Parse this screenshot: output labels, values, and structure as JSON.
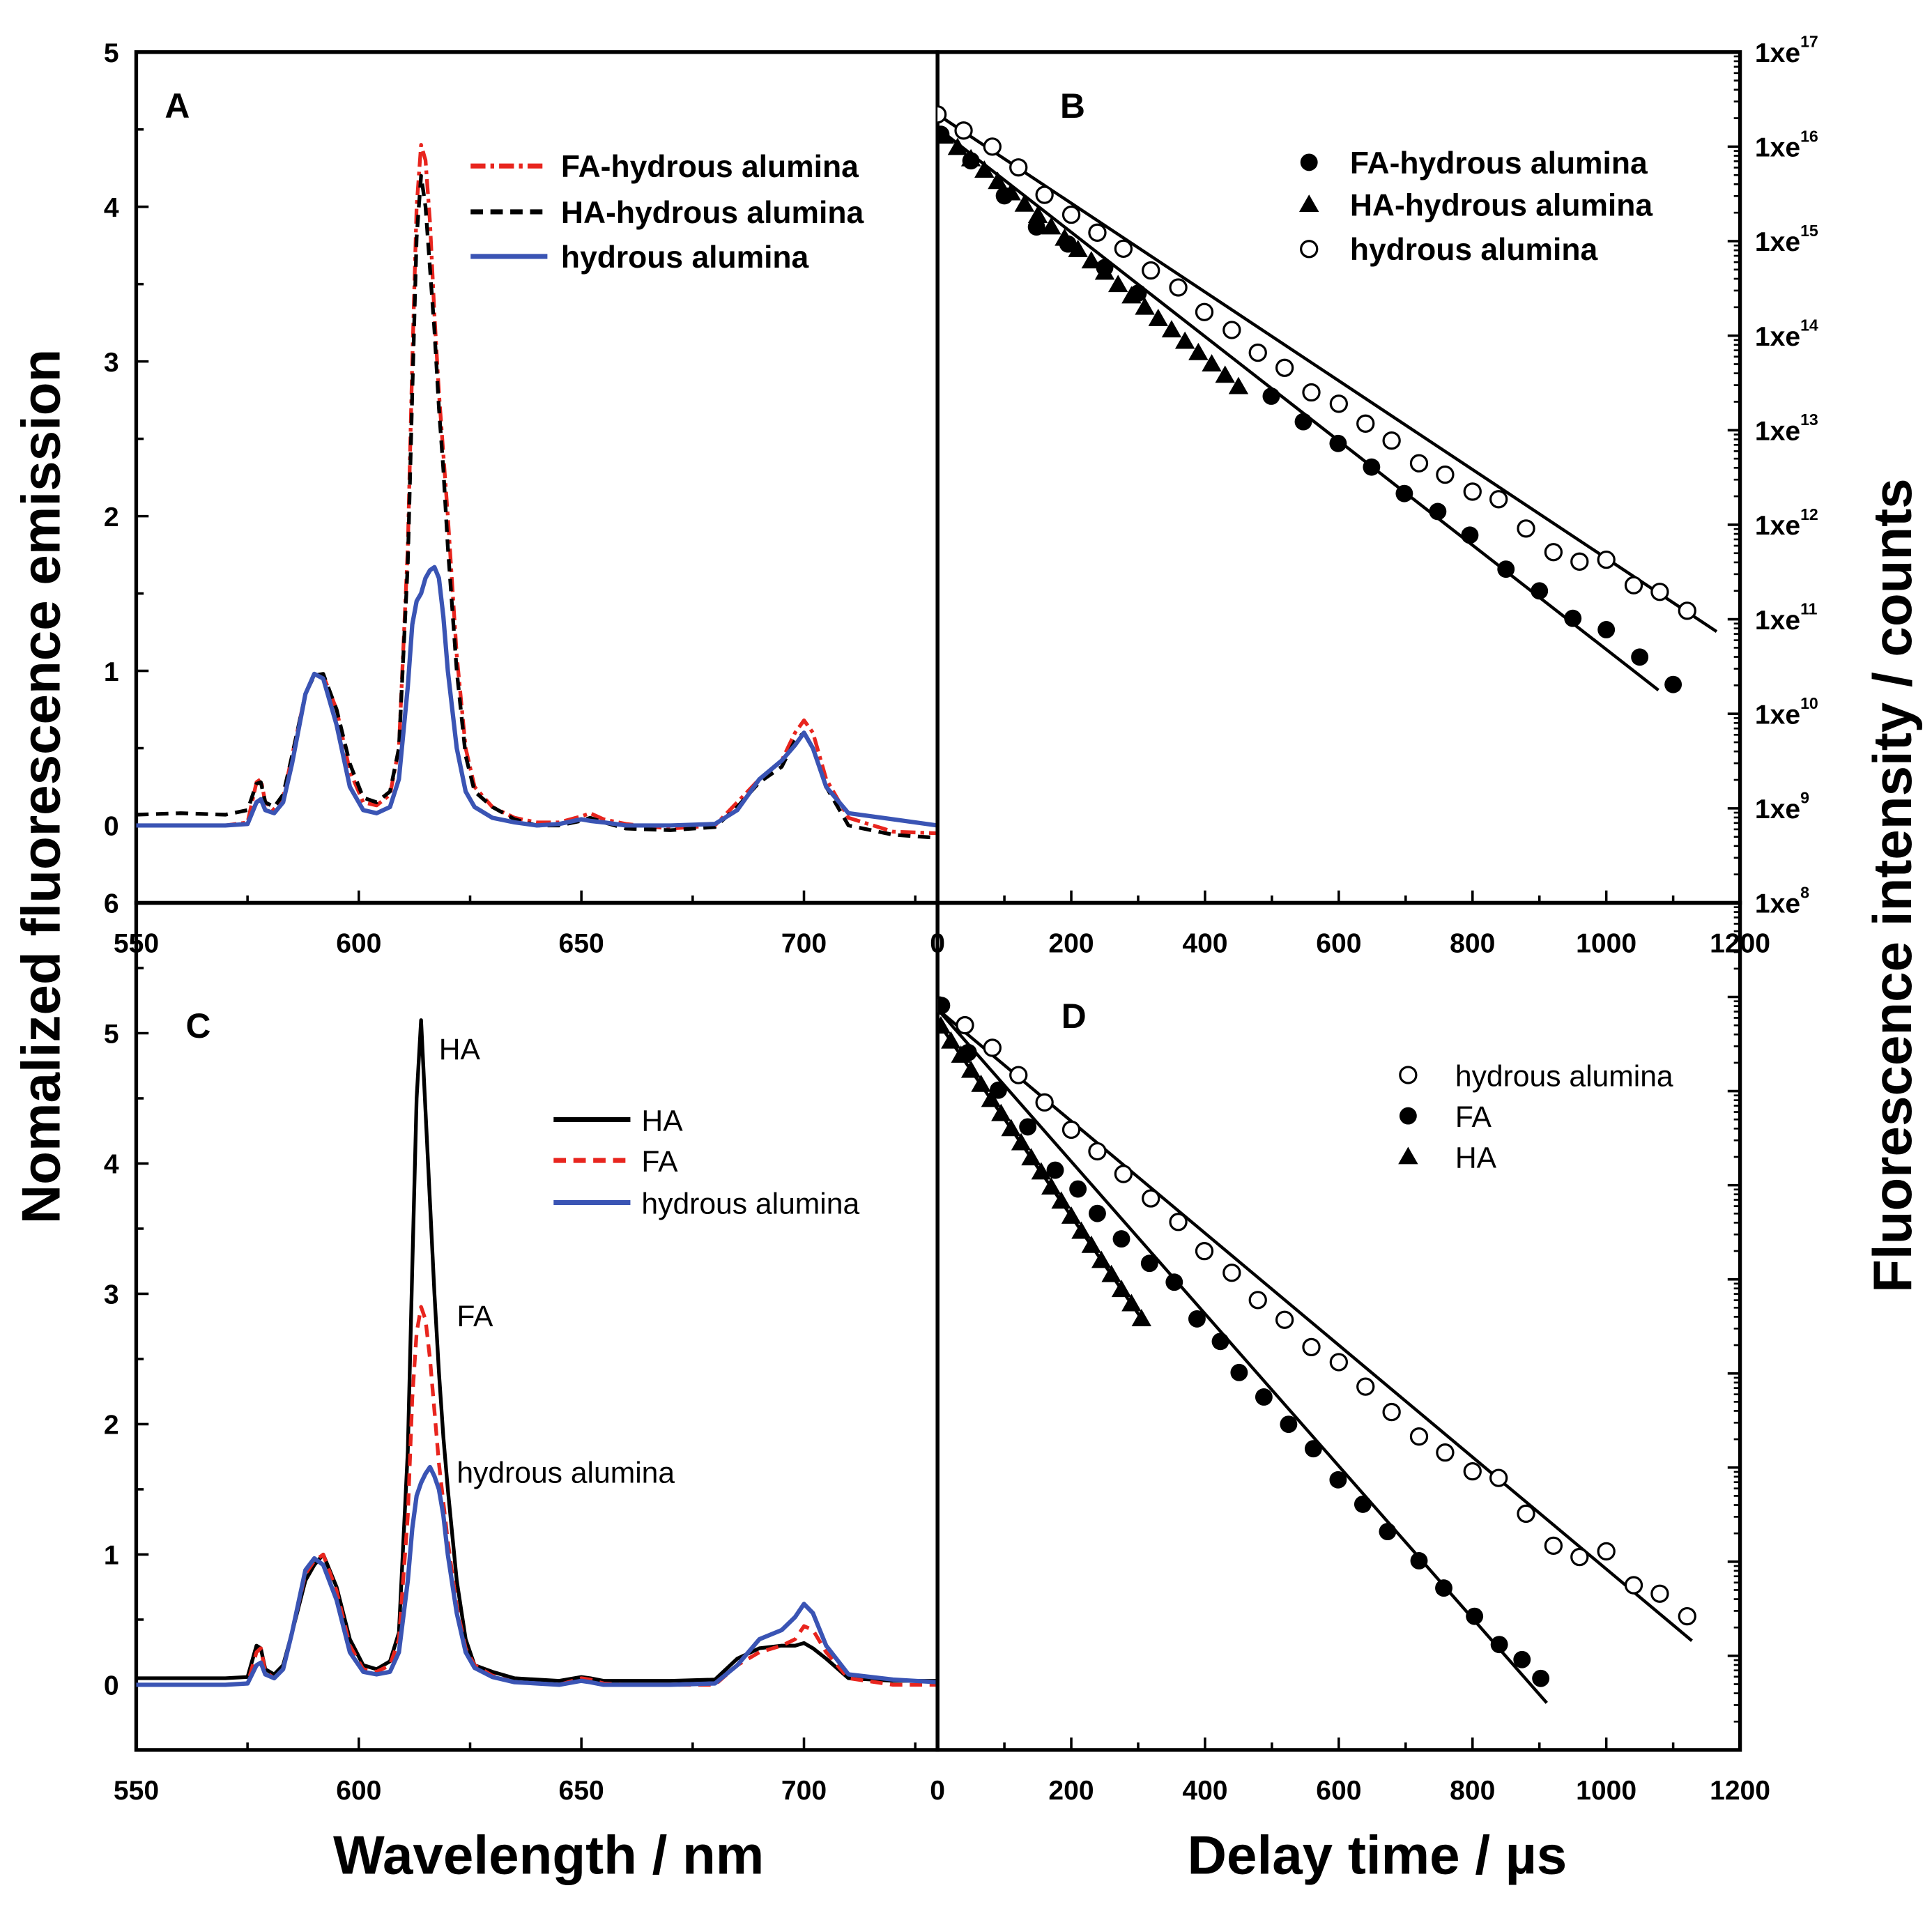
{
  "chart_data": [
    {
      "panel": "A",
      "type": "line",
      "panel_label": "A",
      "xlim": [
        550,
        730
      ],
      "ylim": [
        -0.5,
        5
      ],
      "xticks": [
        550,
        600,
        650,
        700
      ],
      "yticks": [
        0,
        1,
        2,
        3,
        4,
        5
      ],
      "ytick_bottom_label": "6",
      "x": [
        550,
        560,
        570,
        575,
        577,
        578,
        579,
        581,
        583,
        585,
        588,
        590,
        592,
        595,
        598,
        601,
        604,
        607,
        609,
        611,
        612,
        613,
        614,
        615,
        616,
        617,
        618,
        619,
        620,
        622,
        624,
        626,
        630,
        635,
        640,
        645,
        650,
        652,
        655,
        660,
        670,
        680,
        685,
        690,
        695,
        698,
        700,
        702,
        705,
        710,
        720,
        730
      ],
      "series": [
        {
          "name": "FA-hydrous alumina",
          "color": "#e8251e",
          "style": "dashdot",
          "values": [
            0,
            0,
            0,
            0.02,
            0.28,
            0.3,
            0.15,
            0.1,
            0.18,
            0.45,
            0.85,
            0.98,
            0.97,
            0.75,
            0.35,
            0.15,
            0.13,
            0.2,
            0.5,
            1.8,
            3.0,
            4.0,
            4.4,
            4.3,
            3.9,
            3.3,
            2.8,
            2.4,
            2.0,
            1.1,
            0.5,
            0.25,
            0.12,
            0.05,
            0.02,
            0.02,
            0.06,
            0.08,
            0.04,
            0.01,
            -0.02,
            0,
            0.15,
            0.3,
            0.42,
            0.6,
            0.68,
            0.6,
            0.3,
            0.05,
            -0.04,
            -0.05
          ]
        },
        {
          "name": "HA-hydrous alumina",
          "color": "#000000",
          "style": "dashed",
          "values": [
            0.07,
            0.08,
            0.07,
            0.1,
            0.27,
            0.28,
            0.15,
            0.12,
            0.2,
            0.45,
            0.85,
            0.97,
            0.98,
            0.75,
            0.4,
            0.18,
            0.15,
            0.22,
            0.5,
            1.7,
            2.8,
            3.8,
            4.2,
            4.0,
            3.6,
            3.2,
            2.7,
            2.3,
            1.8,
            1.0,
            0.45,
            0.22,
            0.12,
            0.04,
            0,
            0,
            0.03,
            0.05,
            0.02,
            -0.02,
            -0.03,
            -0.01,
            0.12,
            0.28,
            0.38,
            0.55,
            0.6,
            0.5,
            0.25,
            0,
            -0.06,
            -0.08
          ]
        },
        {
          "name": "hydrous alumina",
          "color": "#3a54b4",
          "style": "solid",
          "values": [
            0,
            0,
            0,
            0.01,
            0.15,
            0.17,
            0.1,
            0.08,
            0.15,
            0.4,
            0.85,
            0.98,
            0.95,
            0.65,
            0.25,
            0.1,
            0.08,
            0.12,
            0.3,
            0.9,
            1.3,
            1.45,
            1.5,
            1.6,
            1.65,
            1.67,
            1.6,
            1.35,
            1.0,
            0.5,
            0.22,
            0.12,
            0.05,
            0.02,
            0,
            0.01,
            0.04,
            0.03,
            0.02,
            0,
            0,
            0.01,
            0.1,
            0.3,
            0.42,
            0.52,
            0.6,
            0.5,
            0.25,
            0.08,
            0.04,
            0
          ]
        }
      ],
      "legend": {
        "placement": "top-right",
        "entries": [
          "FA-hydrous alumina",
          "HA-hydrous alumina",
          "hydrous alumina"
        ]
      }
    },
    {
      "panel": "B",
      "type": "scatter",
      "panel_label": "B",
      "xlim": [
        0,
        1200
      ],
      "ylim_log10": [
        8,
        17
      ],
      "xticks": [
        0,
        200,
        400,
        600,
        800,
        1000,
        1200
      ],
      "ytick_labels": [
        {
          "exp": 8,
          "base": "1xe",
          "sup": "8"
        },
        {
          "exp": 9,
          "base": "1xe",
          "sup": "9"
        },
        {
          "exp": 10,
          "base": "1xe",
          "sup": "10"
        },
        {
          "exp": 11,
          "base": "1xe",
          "sup": "11"
        },
        {
          "exp": 12,
          "base": "1xe",
          "sup": "12"
        },
        {
          "exp": 13,
          "base": "1xe",
          "sup": "13"
        },
        {
          "exp": 14,
          "base": "1xe",
          "sup": "14"
        },
        {
          "exp": 15,
          "base": "1xe",
          "sup": "15"
        },
        {
          "exp": 16,
          "base": "1xe",
          "sup": "16"
        },
        {
          "exp": 17,
          "base": "1xe",
          "sup": "17"
        }
      ],
      "series": [
        {
          "name": "FA-hydrous alumina",
          "marker": "filled-circle",
          "x": [
            5,
            50,
            100,
            148,
            195,
            250,
            300,
            499,
            547,
            599,
            649,
            698,
            748,
            796,
            850,
            900,
            950,
            1000,
            1050,
            1100
          ],
          "log10_y": [
            16.13,
            15.85,
            15.48,
            15.15,
            14.97,
            14.72,
            14.45,
            13.36,
            13.09,
            12.86,
            12.61,
            12.33,
            12.14,
            11.89,
            11.53,
            11.3,
            11.01,
            10.89,
            10.6,
            10.31
          ]
        },
        {
          "name": "HA-hydrous alumina",
          "marker": "filled-triangle",
          "x": [
            10,
            30,
            50,
            70,
            90,
            110,
            130,
            150,
            170,
            190,
            210,
            230,
            250,
            270,
            290,
            310,
            330,
            350,
            370,
            390,
            410,
            430,
            450
          ],
          "log10_y": [
            16.11,
            15.99,
            15.87,
            15.75,
            15.63,
            15.51,
            15.39,
            15.27,
            15.15,
            15.03,
            14.91,
            14.79,
            14.67,
            14.54,
            14.42,
            14.3,
            14.18,
            14.06,
            13.94,
            13.82,
            13.7,
            13.58,
            13.46
          ]
        },
        {
          "name": "hydrous alumina",
          "marker": "open-circle",
          "x": [
            0,
            39,
            82,
            121,
            160,
            200,
            239,
            278,
            319,
            360,
            399,
            440,
            479,
            519,
            559,
            600,
            640,
            679,
            720,
            759,
            800,
            839,
            880,
            921,
            960,
            1000,
            1041,
            1080,
            1121
          ],
          "log10_y": [
            16.34,
            16.17,
            16.0,
            15.78,
            15.49,
            15.28,
            15.09,
            14.92,
            14.69,
            14.51,
            14.25,
            14.06,
            13.82,
            13.66,
            13.4,
            13.28,
            13.07,
            12.89,
            12.65,
            12.53,
            12.35,
            12.27,
            11.96,
            11.71,
            11.61,
            11.63,
            11.36,
            11.29,
            11.09
          ]
        }
      ],
      "fits": [
        {
          "name": "hydrous alumina fit",
          "points": [
            [
              0,
              16.34
            ],
            [
              1165,
              10.87
            ]
          ]
        },
        {
          "name": "FA-hydrous alumina fit",
          "points": [
            [
              5,
              16.17
            ],
            [
              1078,
              10.25
            ]
          ]
        }
      ],
      "legend": {
        "placement": "top-right",
        "entries": [
          "FA-hydrous alumina",
          "HA-hydrous alumina",
          "hydrous alumina"
        ]
      }
    },
    {
      "panel": "C",
      "type": "line",
      "panel_label": "C",
      "xlim": [
        550,
        730
      ],
      "ylim": [
        -0.5,
        6
      ],
      "xticks": [
        550,
        600,
        650,
        700
      ],
      "yticks": [
        0,
        1,
        2,
        3,
        4,
        5
      ],
      "x": [
        550,
        560,
        570,
        575,
        577,
        578,
        579,
        581,
        583,
        585,
        588,
        590,
        592,
        595,
        598,
        601,
        604,
        607,
        609,
        611,
        612,
        613,
        614,
        615,
        616,
        617,
        618,
        619,
        620,
        622,
        624,
        626,
        630,
        635,
        640,
        645,
        650,
        652,
        655,
        660,
        670,
        680,
        685,
        690,
        695,
        698,
        700,
        702,
        705,
        710,
        720,
        730
      ],
      "series": [
        {
          "name": "HA",
          "color": "#000000",
          "style": "solid",
          "values": [
            0.05,
            0.05,
            0.05,
            0.06,
            0.3,
            0.28,
            0.12,
            0.08,
            0.15,
            0.4,
            0.8,
            0.92,
            1.0,
            0.75,
            0.35,
            0.15,
            0.12,
            0.18,
            0.4,
            1.8,
            3.2,
            4.5,
            5.1,
            4.4,
            3.7,
            3.0,
            2.4,
            1.9,
            1.5,
            0.8,
            0.35,
            0.15,
            0.1,
            0.05,
            0.04,
            0.03,
            0.06,
            0.05,
            0.03,
            0.03,
            0.03,
            0.04,
            0.2,
            0.28,
            0.3,
            0.3,
            0.32,
            0.28,
            0.2,
            0.05,
            0.03,
            0.03
          ]
        },
        {
          "name": "FA",
          "color": "#e8251e",
          "style": "dashed",
          "values": [
            0,
            0,
            0,
            0.01,
            0.25,
            0.28,
            0.1,
            0.05,
            0.12,
            0.4,
            0.85,
            0.95,
            1.0,
            0.72,
            0.3,
            0.12,
            0.1,
            0.15,
            0.35,
            1.3,
            2.2,
            2.7,
            2.9,
            2.8,
            2.5,
            2.1,
            1.7,
            1.4,
            1.1,
            0.6,
            0.28,
            0.15,
            0.07,
            0.02,
            0.01,
            0,
            0.05,
            0.04,
            0.01,
            0,
            0,
            0,
            0.15,
            0.25,
            0.3,
            0.35,
            0.45,
            0.42,
            0.25,
            0.05,
            0,
            0
          ]
        },
        {
          "name": "hydrous alumina",
          "color": "#3a54b4",
          "style": "solid",
          "values": [
            0,
            0,
            0,
            0.01,
            0.15,
            0.17,
            0.08,
            0.05,
            0.12,
            0.4,
            0.88,
            0.97,
            0.92,
            0.65,
            0.25,
            0.1,
            0.08,
            0.1,
            0.25,
            0.8,
            1.2,
            1.45,
            1.55,
            1.62,
            1.67,
            1.6,
            1.5,
            1.3,
            1.0,
            0.55,
            0.25,
            0.13,
            0.06,
            0.02,
            0.01,
            0,
            0.03,
            0.02,
            0,
            0,
            0,
            0.01,
            0.15,
            0.35,
            0.42,
            0.52,
            0.62,
            0.55,
            0.3,
            0.08,
            0.04,
            0.02
          ]
        }
      ],
      "annotations": [
        {
          "text": "HA",
          "x": 618,
          "y": 4.8
        },
        {
          "text": "FA",
          "x": 622,
          "y": 2.75
        },
        {
          "text": "hydrous alumina",
          "x": 622,
          "y": 1.55
        }
      ],
      "legend": {
        "placement": "top-right",
        "entries": [
          "HA",
          "FA",
          "hydrous alumina"
        ]
      }
    },
    {
      "panel": "D",
      "type": "scatter",
      "panel_label": "D",
      "xlim": [
        0,
        1200
      ],
      "ylim_log10": [
        8,
        17
      ],
      "xticks": [
        0,
        200,
        400,
        600,
        800,
        1000,
        1200
      ],
      "series": [
        {
          "name": "hydrous alumina",
          "marker": "open-circle",
          "x": [
            2,
            41,
            82,
            121,
            160,
            200,
            239,
            278,
            319,
            360,
            399,
            440,
            479,
            519,
            559,
            600,
            640,
            679,
            720,
            759,
            800,
            839,
            880,
            921,
            960,
            1000,
            1041,
            1080,
            1121
          ],
          "log10_y": [
            15.91,
            15.7,
            15.46,
            15.17,
            14.88,
            14.59,
            14.36,
            14.12,
            13.86,
            13.61,
            13.3,
            13.07,
            12.78,
            12.57,
            12.28,
            12.12,
            11.86,
            11.59,
            11.33,
            11.16,
            10.96,
            10.89,
            10.51,
            10.17,
            10.05,
            10.11,
            9.75,
            9.66,
            9.42
          ]
        },
        {
          "name": "FA",
          "marker": "filled-circle",
          "x": [
            6,
            46,
            91,
            135,
            176,
            210,
            239,
            275,
            317,
            354,
            388,
            423,
            451,
            488,
            525,
            562,
            599,
            636,
            673,
            720,
            757,
            803,
            840,
            874,
            902
          ],
          "log10_y": [
            15.91,
            15.41,
            15.01,
            14.62,
            14.16,
            13.96,
            13.7,
            13.43,
            13.17,
            12.97,
            12.58,
            12.34,
            12.01,
            11.75,
            11.46,
            11.2,
            10.87,
            10.61,
            10.32,
            10.01,
            9.72,
            9.42,
            9.12,
            8.96,
            8.76
          ]
        },
        {
          "name": "HA",
          "marker": "filled-triangle",
          "x": [
            5,
            20,
            35,
            50,
            65,
            80,
            95,
            110,
            125,
            140,
            155,
            170,
            185,
            200,
            215,
            230,
            245,
            260,
            275,
            290,
            305
          ],
          "log10_y": [
            15.69,
            15.53,
            15.38,
            15.22,
            15.07,
            14.91,
            14.76,
            14.6,
            14.45,
            14.29,
            14.14,
            13.98,
            13.83,
            13.67,
            13.51,
            13.36,
            13.2,
            13.05,
            12.89,
            12.74,
            12.58
          ]
        }
      ],
      "fits": [
        {
          "name": "hydrous alumina fit",
          "points": [
            [
              0,
              15.87
            ],
            [
              1128,
              9.16
            ]
          ]
        },
        {
          "name": "FA fit",
          "points": [
            [
              0,
              15.87
            ],
            [
              911,
              8.5
            ]
          ]
        },
        {
          "name": "HA fit",
          "points": [
            [
              0,
              15.74
            ],
            [
              312,
              12.51
            ]
          ]
        }
      ],
      "legend": {
        "placement": "top-right",
        "entries": [
          "hydrous alumina",
          "FA",
          "HA"
        ]
      }
    }
  ],
  "axis_titles": {
    "left": "Nomalized fluorescence emission",
    "right": "Fluorescence intensity / counts",
    "bottom_left": "Wavelength / nm",
    "bottom_right": "Delay time /  µs"
  }
}
